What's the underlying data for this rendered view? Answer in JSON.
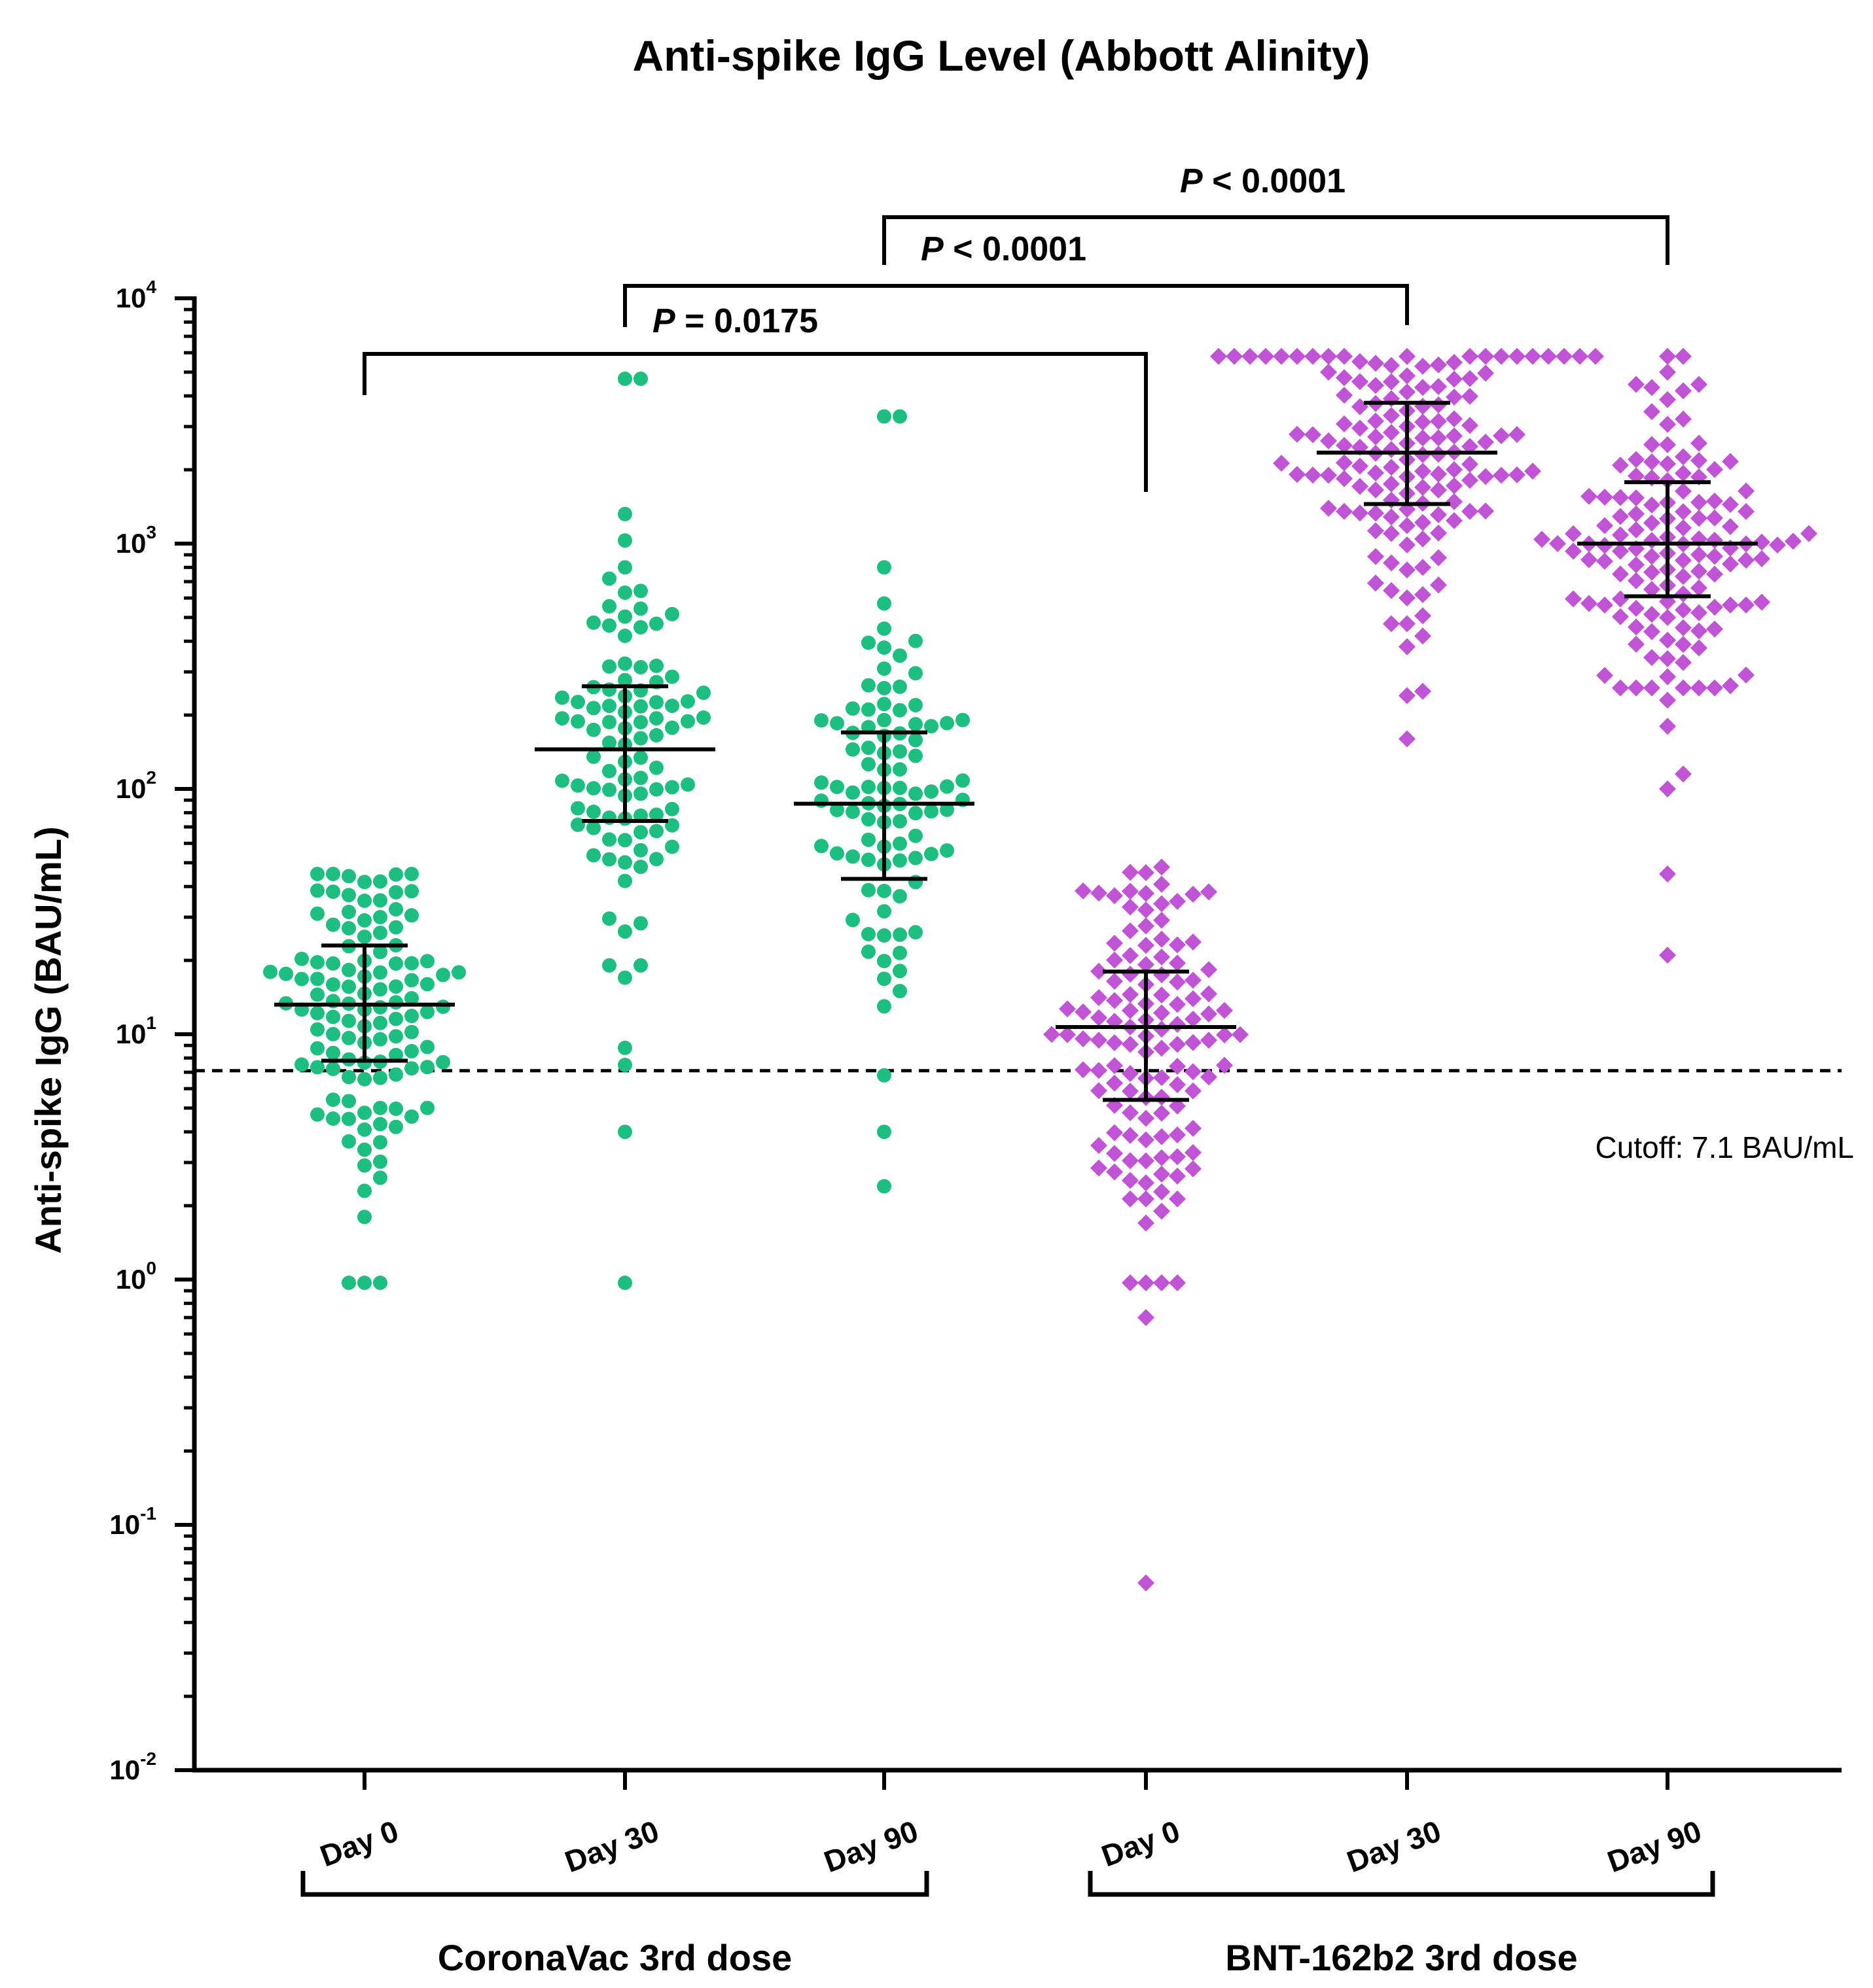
{
  "chart_data": {
    "type": "scatter",
    "title": "Anti-spike IgG Level (Abbott Alinity)",
    "ylabel": "Anti-spike IgG (BAU/mL)",
    "xlabel": "",
    "yscale": "log",
    "ylim": [
      0.01,
      10000
    ],
    "yticks": [
      {
        "base": "10",
        "exp": "4"
      },
      {
        "base": "10",
        "exp": "3"
      },
      {
        "base": "10",
        "exp": "2"
      },
      {
        "base": "10",
        "exp": "1"
      },
      {
        "base": "10",
        "exp": "0"
      },
      {
        "base": "10",
        "exp": "-1"
      },
      {
        "base": "10",
        "exp": "-2"
      }
    ],
    "categories": [
      "Day 0",
      "Day 30",
      "Day 90",
      "Day 0",
      "Day 30",
      "Day 90"
    ],
    "groups": [
      {
        "label": "CoronaVac 3rd dose",
        "categories": [
          0,
          1,
          2
        ]
      },
      {
        "label": "BNT-162b2 3rd dose",
        "categories": [
          3,
          4,
          5
        ]
      }
    ],
    "cutoff": {
      "value": 7.1,
      "label": "Cutoff: 7.1 BAU/mL"
    },
    "comparisons": [
      {
        "p_symbol": "P",
        "p_text": " = 0.0175",
        "from": 0,
        "to": 3
      },
      {
        "p_symbol": "P",
        "p_text": " < 0.0001",
        "from": 1,
        "to": 4
      },
      {
        "p_symbol": "P",
        "p_text": " < 0.0001",
        "from": 2,
        "to": 5
      }
    ],
    "series": [
      {
        "name": "CoronaVac Day 0",
        "vaccine": "CoronaVac",
        "marker": "circle",
        "color": "#1cbf7f",
        "median": 13.2,
        "q1": 7.8,
        "q3": 23,
        "min": 0.97,
        "max": 45,
        "n": 118,
        "outliers_low": [
          0.97,
          0.97,
          0.97,
          1.8,
          2.3,
          2.6
        ]
      },
      {
        "name": "CoronaVac Day 30",
        "vaccine": "CoronaVac",
        "marker": "circle",
        "color": "#1cbf7f",
        "median": 145,
        "q1": 74,
        "q3": 262,
        "min": 0.97,
        "max": 4700,
        "n": 100,
        "outliers_high": [
          4700,
          1320,
          1030,
          800,
          720
        ],
        "outliers_low": [
          0.97,
          4.0,
          7.5,
          8.8,
          17
        ]
      },
      {
        "name": "CoronaVac Day 90",
        "vaccine": "CoronaVac",
        "marker": "circle",
        "color": "#1cbf7f",
        "median": 87,
        "q1": 43,
        "q3": 170,
        "min": 2.4,
        "max": 3300,
        "n": 95,
        "outliers_high": [
          3300,
          800,
          570,
          450
        ],
        "outliers_low": [
          2.4,
          4.0,
          6.8,
          13,
          15
        ]
      },
      {
        "name": "BNT-162b2 Day 0",
        "vaccine": "BNT-162b2",
        "marker": "diamond",
        "color": "#c153d6",
        "median": 10.7,
        "q1": 5.4,
        "q3": 18,
        "min": 0.058,
        "max": 48,
        "n": 125,
        "outliers_low": [
          0.058,
          0.7,
          0.97,
          0.97,
          0.97,
          0.97,
          1.7,
          1.9
        ]
      },
      {
        "name": "BNT-162b2 Day 30",
        "vaccine": "BNT-162b2",
        "marker": "diamond",
        "color": "#c153d6",
        "median": 2350,
        "q1": 1450,
        "q3": 3750,
        "min": 160,
        "max": 5800,
        "n": 140,
        "outliers_low": [
          160,
          240,
          250,
          380,
          420
        ]
      },
      {
        "name": "BNT-162b2 Day 90",
        "vaccine": "BNT-162b2",
        "marker": "diamond",
        "color": "#c153d6",
        "median": 1000,
        "q1": 610,
        "q3": 1780,
        "min": 21,
        "max": 5800,
        "n": 135,
        "outliers_high": [
          5800,
          5000
        ],
        "outliers_low": [
          21,
          45,
          100,
          115,
          180,
          230
        ]
      }
    ]
  }
}
